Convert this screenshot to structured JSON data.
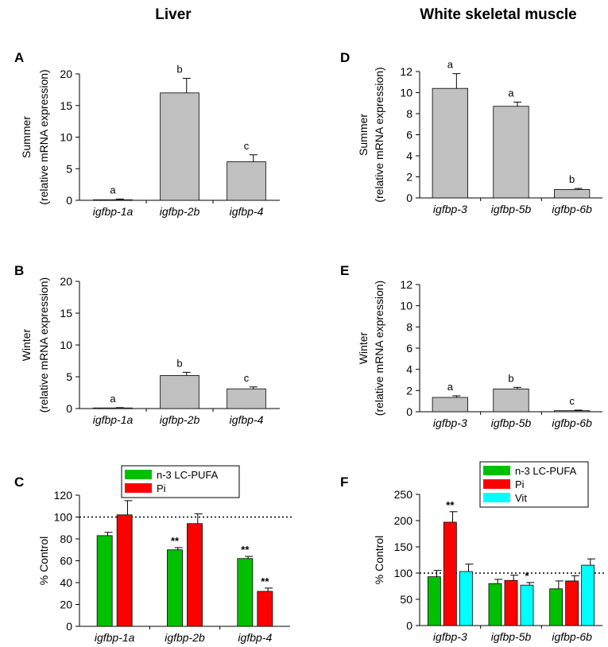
{
  "columns": {
    "left_title": "Liver",
    "right_title": "White skeletal muscle"
  },
  "chart_data": [
    {
      "panel": "A",
      "type": "bar",
      "column": "Liver",
      "categories": [
        "igfbp-1a",
        "igfbp-2b",
        "igfbp-4"
      ],
      "values": [
        0.1,
        17.0,
        6.1
      ],
      "errors": [
        0.1,
        2.3,
        1.1
      ],
      "significance": [
        "a",
        "b",
        "c"
      ],
      "ylabel": [
        "Summer",
        "(relative mRNA expression)"
      ],
      "ylim": [
        0,
        20
      ],
      "yticks": [
        "0",
        "5",
        "10",
        "15",
        "20"
      ],
      "colors": [
        "#c0c0c0"
      ]
    },
    {
      "panel": "B",
      "type": "bar",
      "column": "Liver",
      "categories": [
        "igfbp-1a",
        "igfbp-2b",
        "igfbp-4"
      ],
      "values": [
        0.1,
        5.2,
        3.1
      ],
      "errors": [
        0.05,
        0.5,
        0.3
      ],
      "significance": [
        "a",
        "b",
        "c"
      ],
      "ylabel": [
        "Winter",
        "(relative mRNA expression)"
      ],
      "ylim": [
        0,
        20
      ],
      "yticks": [
        "0",
        "5",
        "10",
        "15",
        "20"
      ],
      "colors": [
        "#c0c0c0"
      ]
    },
    {
      "panel": "C",
      "type": "bar",
      "column": "Liver",
      "categories": [
        "igfbp-1a",
        "igfbp-2b",
        "igfbp-4"
      ],
      "series": [
        {
          "name": "n-3 LC-PUFA",
          "color": "#00c000",
          "values": [
            83,
            70,
            62
          ],
          "errors": [
            3,
            2,
            2
          ],
          "stars": [
            "",
            "**",
            "**"
          ]
        },
        {
          "name": "Pi",
          "color": "#ff0000",
          "values": [
            102,
            94,
            32
          ],
          "errors": [
            13,
            9,
            3
          ],
          "stars": [
            "",
            "",
            "**"
          ]
        }
      ],
      "reference_line": 100,
      "ylabel": [
        "% Control"
      ],
      "ylim": [
        0,
        120
      ],
      "yticks": [
        "0",
        "20",
        "40",
        "60",
        "80",
        "100",
        "120"
      ]
    },
    {
      "panel": "D",
      "type": "bar",
      "column": "White skeletal muscle",
      "categories": [
        "igfbp-3",
        "igfbp-5b",
        "igfbp-6b"
      ],
      "values": [
        10.4,
        8.7,
        0.8
      ],
      "errors": [
        1.4,
        0.4,
        0.1
      ],
      "significance": [
        "a",
        "a",
        "b"
      ],
      "ylabel": [
        "Summer",
        "(relative mRNA expression)"
      ],
      "ylim": [
        0,
        12
      ],
      "yticks": [
        "0",
        "2",
        "4",
        "6",
        "8",
        "10",
        "12"
      ],
      "colors": [
        "#c0c0c0"
      ]
    },
    {
      "panel": "E",
      "type": "bar",
      "column": "White skeletal muscle",
      "categories": [
        "igfbp-3",
        "igfbp-5b",
        "igfbp-6b"
      ],
      "values": [
        1.35,
        2.15,
        0.1
      ],
      "errors": [
        0.15,
        0.15,
        0.05
      ],
      "significance": [
        "a",
        "b",
        "c"
      ],
      "ylabel": [
        "Winter",
        "(relative mRNA expression)"
      ],
      "ylim": [
        0,
        12
      ],
      "yticks": [
        "0",
        "2",
        "4",
        "6",
        "8",
        "10",
        "12"
      ],
      "colors": [
        "#c0c0c0"
      ]
    },
    {
      "panel": "F",
      "type": "bar",
      "column": "White skeletal muscle",
      "categories": [
        "igfbp-3",
        "igfbp-5b",
        "igfbp-6b"
      ],
      "series": [
        {
          "name": "n-3 LC-PUFA",
          "color": "#00c000",
          "values": [
            93,
            80,
            70
          ],
          "errors": [
            12,
            8,
            15
          ],
          "stars": [
            "",
            "",
            ""
          ]
        },
        {
          "name": "Pi",
          "color": "#ff0000",
          "values": [
            197,
            86,
            85
          ],
          "errors": [
            20,
            10,
            10
          ],
          "stars": [
            "**",
            "",
            ""
          ]
        },
        {
          "name": "Vit",
          "color": "#00ffff",
          "values": [
            103,
            77,
            115
          ],
          "errors": [
            14,
            5,
            12
          ],
          "stars": [
            "",
            "*",
            ""
          ]
        }
      ],
      "reference_line": 100,
      "ylabel": [
        "% Control"
      ],
      "ylim": [
        0,
        250
      ],
      "yticks": [
        "0",
        "50",
        "100",
        "150",
        "200",
        "250"
      ]
    }
  ]
}
